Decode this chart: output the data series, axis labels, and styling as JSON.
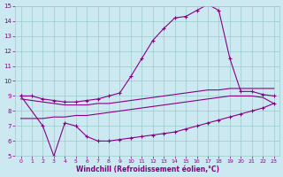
{
  "background_color": "#cce8f0",
  "grid_color": "#99cccc",
  "line_color": "#880088",
  "xlabel": "Windchill (Refroidissement éolien,°C)",
  "xlabel_color": "#880088",
  "xlim": [
    -0.5,
    23.5
  ],
  "ylim": [
    5,
    15
  ],
  "xticks": [
    0,
    1,
    2,
    3,
    4,
    5,
    6,
    7,
    8,
    9,
    10,
    11,
    12,
    13,
    14,
    15,
    16,
    17,
    18,
    19,
    20,
    21,
    22,
    23
  ],
  "yticks": [
    5,
    6,
    7,
    8,
    9,
    10,
    11,
    12,
    13,
    14,
    15
  ],
  "lineA_x": [
    0,
    2,
    3,
    4,
    5,
    6,
    7,
    8,
    9,
    10,
    11,
    12,
    13,
    14,
    15,
    16,
    17,
    18,
    19,
    20,
    21,
    22,
    23
  ],
  "lineA_y": [
    9.0,
    7.0,
    5.0,
    7.2,
    7.0,
    6.3,
    6.0,
    6.0,
    6.1,
    6.2,
    6.3,
    6.4,
    6.5,
    6.6,
    6.8,
    7.0,
    7.2,
    7.4,
    7.6,
    7.8,
    8.0,
    8.2,
    8.5
  ],
  "lineB_x": [
    0,
    1,
    2,
    3,
    4,
    5,
    6,
    7,
    8,
    9,
    10,
    11,
    12,
    13,
    14,
    15,
    16,
    17,
    18,
    19,
    20,
    21,
    22,
    23
  ],
  "lineB_y": [
    8.8,
    8.7,
    8.6,
    8.5,
    8.4,
    8.4,
    8.4,
    8.5,
    8.5,
    8.6,
    8.7,
    8.8,
    8.9,
    9.0,
    9.1,
    9.2,
    9.3,
    9.4,
    9.4,
    9.5,
    9.5,
    9.5,
    9.5,
    9.5
  ],
  "lineC_x": [
    0,
    1,
    2,
    3,
    4,
    5,
    6,
    7,
    8,
    9,
    10,
    11,
    12,
    13,
    14,
    15,
    16,
    17,
    18,
    19,
    20,
    21,
    22,
    23
  ],
  "lineC_y": [
    7.5,
    7.5,
    7.5,
    7.6,
    7.6,
    7.7,
    7.7,
    7.8,
    7.9,
    8.0,
    8.1,
    8.2,
    8.3,
    8.4,
    8.5,
    8.6,
    8.7,
    8.8,
    8.9,
    9.0,
    9.0,
    9.0,
    8.9,
    8.5
  ],
  "lineD_x": [
    0,
    1,
    2,
    3,
    4,
    5,
    6,
    7,
    8,
    9,
    10,
    11,
    12,
    13,
    14,
    15,
    16,
    17,
    18,
    19,
    20,
    21,
    22,
    23
  ],
  "lineD_y": [
    9.0,
    9.0,
    8.8,
    8.7,
    8.6,
    8.6,
    8.7,
    8.8,
    9.0,
    9.2,
    10.3,
    11.5,
    12.7,
    13.5,
    14.2,
    14.3,
    14.7,
    15.1,
    14.7,
    11.5,
    9.3,
    9.3,
    9.1,
    9.0
  ],
  "marker": "+"
}
